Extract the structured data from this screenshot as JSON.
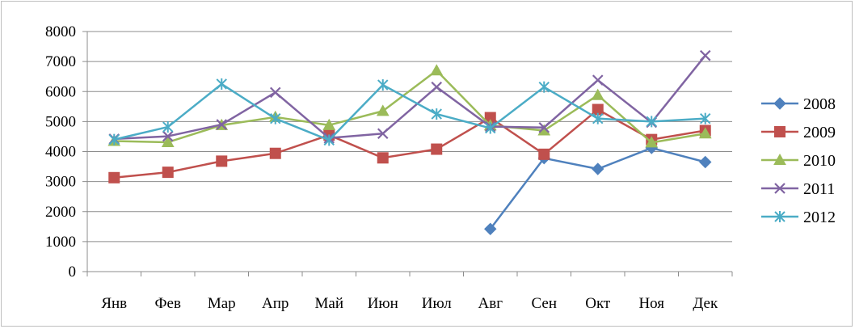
{
  "chart_data": {
    "type": "line",
    "title": "",
    "xlabel": "",
    "ylabel": "",
    "categories": [
      "Янв",
      "Фев",
      "Мар",
      "Апр",
      "Май",
      "Июн",
      "Июл",
      "Авг",
      "Сен",
      "Окт",
      "Ноя",
      "Дек"
    ],
    "ylim": [
      0,
      8000
    ],
    "yticks": [
      0,
      1000,
      2000,
      3000,
      4000,
      5000,
      6000,
      7000,
      8000
    ],
    "grid": "horizontal",
    "legend_position": "right",
    "series": [
      {
        "name": "2008",
        "color": "#4f81bd",
        "marker": "diamond",
        "values": [
          null,
          null,
          null,
          null,
          null,
          null,
          null,
          1420,
          3780,
          3420,
          4120,
          3650
        ]
      },
      {
        "name": "2009",
        "color": "#c0504d",
        "marker": "square",
        "values": [
          3130,
          3310,
          3680,
          3940,
          4550,
          3790,
          4080,
          5130,
          3910,
          5400,
          4400,
          4700
        ]
      },
      {
        "name": "2010",
        "color": "#9bbb59",
        "marker": "triangle",
        "values": [
          4350,
          4310,
          4880,
          5150,
          4880,
          5350,
          6700,
          4870,
          4700,
          5880,
          4300,
          4600
        ]
      },
      {
        "name": "2011",
        "color": "#8064a2",
        "marker": "x",
        "values": [
          4420,
          4510,
          4900,
          5970,
          4450,
          4600,
          6150,
          4830,
          4800,
          6380,
          4970,
          7200
        ]
      },
      {
        "name": "2012",
        "color": "#4bacc6",
        "marker": "star",
        "values": [
          4400,
          4820,
          6250,
          5100,
          4380,
          6220,
          5250,
          4780,
          6150,
          5100,
          5000,
          5100
        ]
      }
    ]
  }
}
